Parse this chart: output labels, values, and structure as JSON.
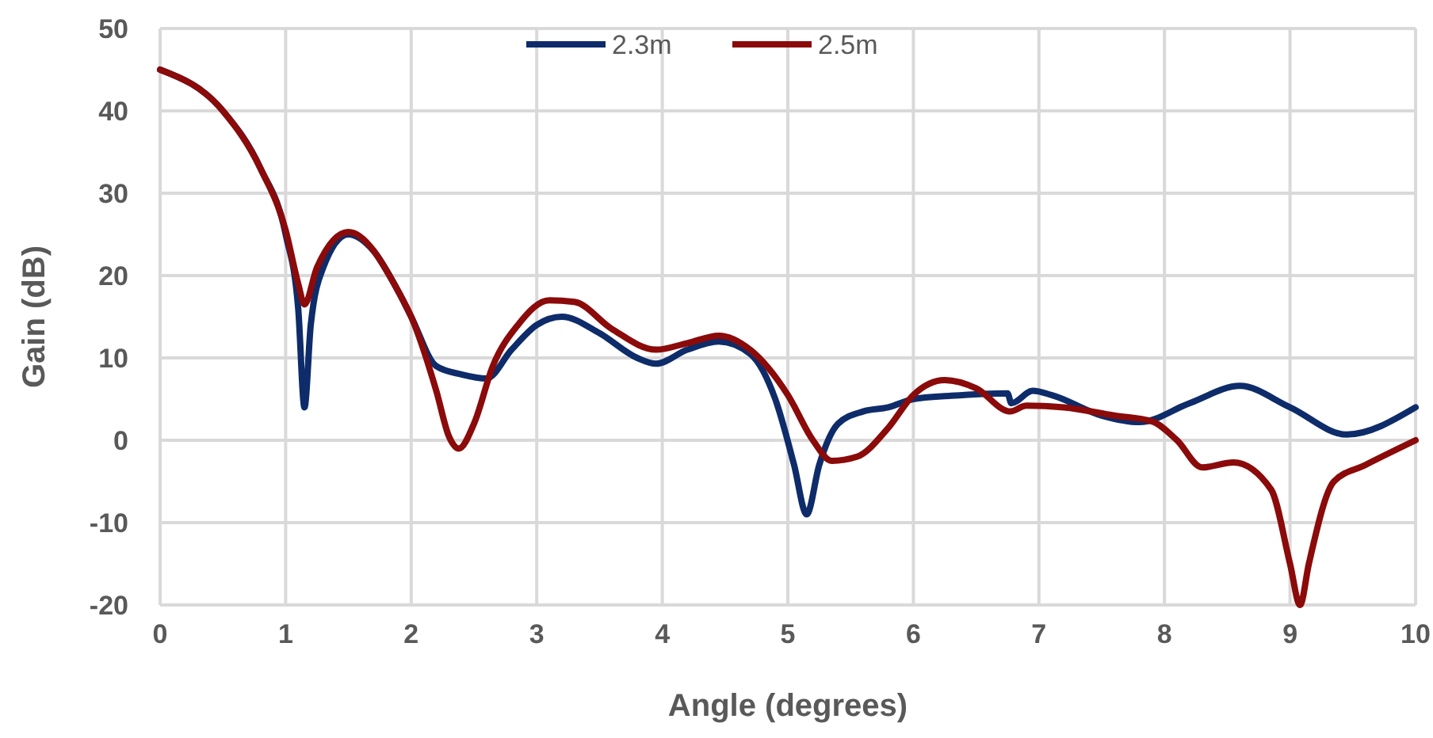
{
  "chart_data": {
    "type": "line",
    "xlabel": "Angle (degrees)",
    "ylabel": "Gain (dB)",
    "xlim": [
      0,
      10
    ],
    "xticks": [
      0,
      1,
      2,
      3,
      4,
      5,
      6,
      7,
      8,
      9,
      10
    ],
    "ylim": [
      -20,
      50
    ],
    "yticks": [
      -20,
      -10,
      0,
      10,
      20,
      30,
      40,
      50
    ],
    "grid": true,
    "legend": "top",
    "marker": "none",
    "line_style": "solid",
    "series": [
      {
        "name": "2.3m",
        "color": "#0e2c6a",
        "x": [
          0,
          0.5,
          0.8,
          1.0,
          1.1,
          1.15,
          1.2,
          1.3,
          1.5,
          1.7,
          1.9,
          2.0,
          2.2,
          2.4,
          2.6,
          2.8,
          3.0,
          3.2,
          3.5,
          3.8,
          3.95,
          4.2,
          4.45,
          4.7,
          4.9,
          5.05,
          5.15,
          5.25,
          5.4,
          5.6,
          5.8,
          6.0,
          6.3,
          6.75,
          6.78,
          6.95,
          7.1,
          7.5,
          7.8,
          8.2,
          8.6,
          9.0,
          9.45,
          10
        ],
        "values": [
          45,
          40,
          33,
          25,
          16,
          4,
          14,
          21,
          25,
          23,
          18,
          15,
          9,
          8,
          7.5,
          11,
          14,
          15,
          13,
          10,
          9.3,
          11,
          12,
          10.5,
          5,
          -3,
          -9,
          -3,
          2,
          3.5,
          4,
          5,
          5.4,
          5.7,
          4.5,
          6,
          5.5,
          3,
          2.2,
          4.5,
          6.6,
          4,
          0.7,
          4
        ]
      },
      {
        "name": "2.5m",
        "color": "#8b0a0a",
        "x": [
          0,
          0.5,
          0.8,
          1.0,
          1.1,
          1.15,
          1.25,
          1.5,
          1.9,
          2.0,
          2.2,
          2.3,
          2.38,
          2.5,
          2.65,
          2.85,
          3.1,
          3.3,
          3.6,
          3.95,
          4.2,
          4.45,
          4.7,
          5.0,
          5.2,
          5.35,
          5.55,
          5.8,
          6.0,
          6.25,
          6.5,
          6.77,
          6.9,
          7.2,
          7.6,
          7.9,
          8.1,
          8.3,
          8.55,
          8.85,
          9.0,
          9.08,
          9.15,
          9.35,
          9.6,
          10
        ],
        "values": [
          45,
          40,
          33,
          25.5,
          19,
          16.5,
          21,
          25.3,
          18,
          15,
          6,
          0.5,
          -1,
          2,
          9,
          14,
          17,
          16.8,
          13.5,
          11,
          11.8,
          12.7,
          11,
          5.5,
          0,
          -2.5,
          -2,
          1.5,
          5.5,
          7.3,
          6.3,
          3.5,
          4.2,
          4,
          3,
          2.3,
          0,
          -3.3,
          -2.7,
          -6,
          -15,
          -20,
          -15,
          -5,
          -3,
          0
        ]
      }
    ]
  }
}
